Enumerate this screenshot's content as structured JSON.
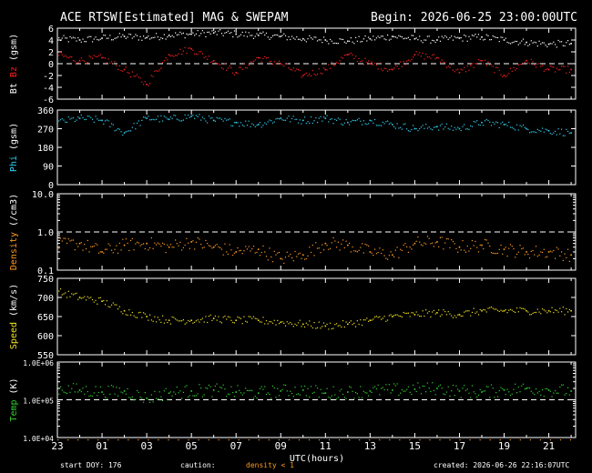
{
  "header": {
    "title": "ACE RTSW[Estimated] MAG & SWEPAM",
    "begin": "Begin: 2026-06-25 23:00:00UTC"
  },
  "footer": {
    "start_doy": "start DOY: 176",
    "caution": "caution:",
    "density_note": "density < 1",
    "created": "created: 2026-06-26 22:16:07UTC"
  },
  "colors": {
    "bt": "#ffffff",
    "bz": "#ff2020",
    "phi": "#30d0f0",
    "density": "#ff9a20",
    "speed": "#f0e020",
    "temp": "#30d030",
    "axis": "#ffffff",
    "background": "#000000"
  },
  "chart_data": [
    {
      "type": "scatter",
      "ylabel_parts": [
        {
          "text": "Bt",
          "color": "#ffffff"
        },
        {
          "text": "Bz",
          "color": "#ff2020"
        },
        {
          "text": "(gsm)",
          "color": "#ffffff"
        }
      ],
      "ylim": [
        -6,
        6
      ],
      "yticks": [
        "6",
        "4",
        "2",
        "0",
        "-2",
        "-4",
        "-6"
      ],
      "reference_line": 0,
      "series": [
        {
          "name": "Bt",
          "color": "#ffffff",
          "x": [
            0,
            1,
            2,
            3,
            4,
            5,
            6,
            7,
            8,
            9,
            10,
            11,
            12,
            13,
            14,
            15,
            16,
            17,
            18,
            19,
            20,
            21,
            22,
            23
          ],
          "y": [
            4.2,
            4.0,
            4.3,
            4.6,
            4.4,
            4.8,
            5.0,
            5.2,
            5.0,
            4.8,
            4.6,
            4.2,
            4.0,
            3.8,
            4.2,
            4.6,
            4.2,
            4.0,
            4.3,
            4.5,
            4.0,
            3.6,
            3.3,
            3.4
          ]
        },
        {
          "name": "Bz",
          "color": "#ff2020",
          "x": [
            0,
            1,
            2,
            3,
            4,
            5,
            6,
            7,
            8,
            9,
            10,
            11,
            12,
            13,
            14,
            15,
            16,
            17,
            18,
            19,
            20,
            21,
            22,
            23
          ],
          "y": [
            1.5,
            0.5,
            1.0,
            -1.0,
            -3.5,
            1.5,
            2.5,
            0.5,
            -1.5,
            1.0,
            0.0,
            -2.0,
            -1.0,
            1.5,
            0.0,
            -1.0,
            1.5,
            1.0,
            -1.5,
            0.5,
            -2.0,
            0.5,
            -1.0,
            -1.0
          ]
        }
      ]
    },
    {
      "type": "scatter",
      "ylabel_parts": [
        {
          "text": "Phi",
          "color": "#30d0f0"
        },
        {
          "text": "(gsm)",
          "color": "#ffffff"
        }
      ],
      "ylim": [
        0,
        360
      ],
      "yticks": [
        "360",
        "270",
        "180",
        "90",
        "0"
      ],
      "series": [
        {
          "name": "Phi",
          "color": "#30d0f0",
          "x": [
            0,
            1,
            2,
            3,
            4,
            5,
            6,
            7,
            8,
            9,
            10,
            11,
            12,
            13,
            14,
            15,
            16,
            17,
            18,
            19,
            20,
            21,
            22,
            23
          ],
          "y": [
            300,
            320,
            310,
            250,
            320,
            315,
            330,
            310,
            300,
            290,
            320,
            310,
            320,
            300,
            310,
            290,
            270,
            280,
            270,
            300,
            290,
            270,
            260,
            250
          ]
        }
      ]
    },
    {
      "type": "scatter",
      "ylabel_parts": [
        {
          "text": "Density",
          "color": "#ff9a20"
        },
        {
          "text": "(/cm3)",
          "color": "#ffffff"
        }
      ],
      "log_scale": true,
      "ylim": [
        0.1,
        10.0
      ],
      "yticks": [
        "10.0",
        "1.0",
        "0.1"
      ],
      "reference_line": 1.0,
      "series": [
        {
          "name": "Density",
          "color": "#ff9a20",
          "x": [
            0,
            1,
            2,
            3,
            4,
            5,
            6,
            7,
            8,
            9,
            10,
            11,
            12,
            13,
            14,
            15,
            16,
            17,
            18,
            19,
            20,
            21,
            22,
            23
          ],
          "y": [
            0.45,
            0.5,
            0.3,
            0.45,
            0.5,
            0.4,
            0.55,
            0.4,
            0.3,
            0.35,
            0.2,
            0.25,
            0.5,
            0.45,
            0.3,
            0.25,
            0.5,
            0.55,
            0.4,
            0.45,
            0.35,
            0.3,
            0.3,
            0.25
          ]
        }
      ]
    },
    {
      "type": "scatter",
      "ylabel_parts": [
        {
          "text": "Speed",
          "color": "#f0e020"
        },
        {
          "text": "(km/s)",
          "color": "#ffffff"
        }
      ],
      "ylim": [
        550,
        750
      ],
      "yticks": [
        "750",
        "700",
        "650",
        "600",
        "550"
      ],
      "series": [
        {
          "name": "Speed",
          "color": "#f0e020",
          "x": [
            0,
            1,
            2,
            3,
            4,
            5,
            6,
            7,
            8,
            9,
            10,
            11,
            12,
            13,
            14,
            15,
            16,
            17,
            18,
            19,
            20,
            21,
            22,
            23
          ],
          "y": [
            715,
            700,
            690,
            665,
            650,
            640,
            640,
            645,
            640,
            640,
            635,
            630,
            625,
            630,
            640,
            650,
            655,
            660,
            655,
            665,
            665,
            665,
            665,
            665
          ]
        }
      ]
    },
    {
      "type": "scatter",
      "ylabel_parts": [
        {
          "text": "Temp",
          "color": "#30d030"
        },
        {
          "text": "(K)",
          "color": "#ffffff"
        }
      ],
      "log_scale": true,
      "ylim": [
        10000,
        1000000
      ],
      "yticks": [
        "1.0E+06",
        "1.0E+05",
        "1.0E+04"
      ],
      "reference_line": 100000,
      "series": [
        {
          "name": "Temp",
          "color": "#30d030",
          "x": [
            0,
            1,
            2,
            3,
            4,
            5,
            6,
            7,
            8,
            9,
            10,
            11,
            12,
            13,
            14,
            15,
            16,
            17,
            18,
            19,
            20,
            21,
            22,
            23
          ],
          "y": [
            200000,
            180000,
            160000,
            170000,
            110000,
            150000,
            170000,
            180000,
            160000,
            150000,
            170000,
            180000,
            150000,
            160000,
            170000,
            180000,
            190000,
            200000,
            170000,
            160000,
            180000,
            200000,
            180000,
            170000
          ]
        }
      ]
    }
  ],
  "x_axis": {
    "label": "UTC(hours)",
    "ticks": [
      "23",
      "01",
      "03",
      "05",
      "07",
      "09",
      "11",
      "13",
      "15",
      "17",
      "19",
      "21"
    ]
  }
}
